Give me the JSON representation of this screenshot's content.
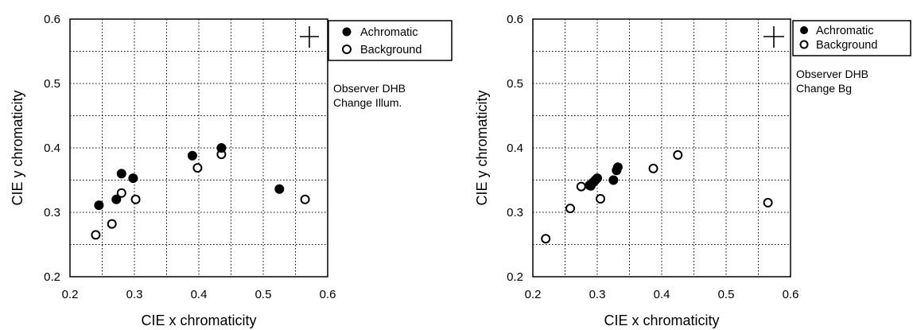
{
  "chart_data": [
    {
      "type": "scatter",
      "xlabel": "CIE x chromaticity",
      "ylabel": "CIE y chromaticity",
      "xlim": [
        0.2,
        0.6
      ],
      "ylim": [
        0.2,
        0.6
      ],
      "xticks": [
        "0.2",
        "0.3",
        "0.4",
        "0.5",
        "0.6"
      ],
      "yticks": [
        "0.2",
        "0.3",
        "0.4",
        "0.5",
        "0.6"
      ],
      "grid": true,
      "legend_position": "top-right",
      "annotation": [
        "Observer DHB",
        "Change Illum."
      ],
      "marker": "plus",
      "series": [
        {
          "name": "Achromatic",
          "marker": "filled-circle",
          "points": [
            [
              0.245,
              0.311
            ],
            [
              0.272,
              0.32
            ],
            [
              0.28,
              0.36
            ],
            [
              0.298,
              0.353
            ],
            [
              0.39,
              0.388
            ],
            [
              0.435,
              0.4
            ],
            [
              0.525,
              0.336
            ]
          ]
        },
        {
          "name": "Background",
          "marker": "open-circle",
          "points": [
            [
              0.24,
              0.265
            ],
            [
              0.265,
              0.282
            ],
            [
              0.28,
              0.33
            ],
            [
              0.302,
              0.32
            ],
            [
              0.398,
              0.369
            ],
            [
              0.435,
              0.39
            ],
            [
              0.565,
              0.32
            ]
          ]
        }
      ]
    },
    {
      "type": "scatter",
      "xlabel": "CIE x chromaticity",
      "ylabel": "CIE y chromaticity",
      "xlim": [
        0.2,
        0.6
      ],
      "ylim": [
        0.2,
        0.6
      ],
      "xticks": [
        "0.2",
        "0.3",
        "0.4",
        "0.5",
        "0.6"
      ],
      "yticks": [
        "0.2",
        "0.3",
        "0.4",
        "0.5",
        "0.6"
      ],
      "grid": true,
      "legend_position": "top-right",
      "annotation": [
        "Observer DHB",
        "Change Bg"
      ],
      "marker": "plus",
      "series": [
        {
          "name": "Achromatic",
          "marker": "filled-circle",
          "points": [
            [
              0.288,
              0.342
            ],
            [
              0.293,
              0.346
            ],
            [
              0.297,
              0.35
            ],
            [
              0.3,
              0.353
            ],
            [
              0.325,
              0.35
            ],
            [
              0.33,
              0.365
            ],
            [
              0.332,
              0.37
            ]
          ]
        },
        {
          "name": "Background",
          "marker": "open-circle",
          "points": [
            [
              0.22,
              0.259
            ],
            [
              0.258,
              0.306
            ],
            [
              0.275,
              0.34
            ],
            [
              0.29,
              0.341
            ],
            [
              0.305,
              0.321
            ],
            [
              0.387,
              0.368
            ],
            [
              0.425,
              0.389
            ],
            [
              0.565,
              0.315
            ]
          ]
        }
      ]
    }
  ],
  "colors": {
    "ink": "#000000",
    "background": "#ffffff"
  }
}
